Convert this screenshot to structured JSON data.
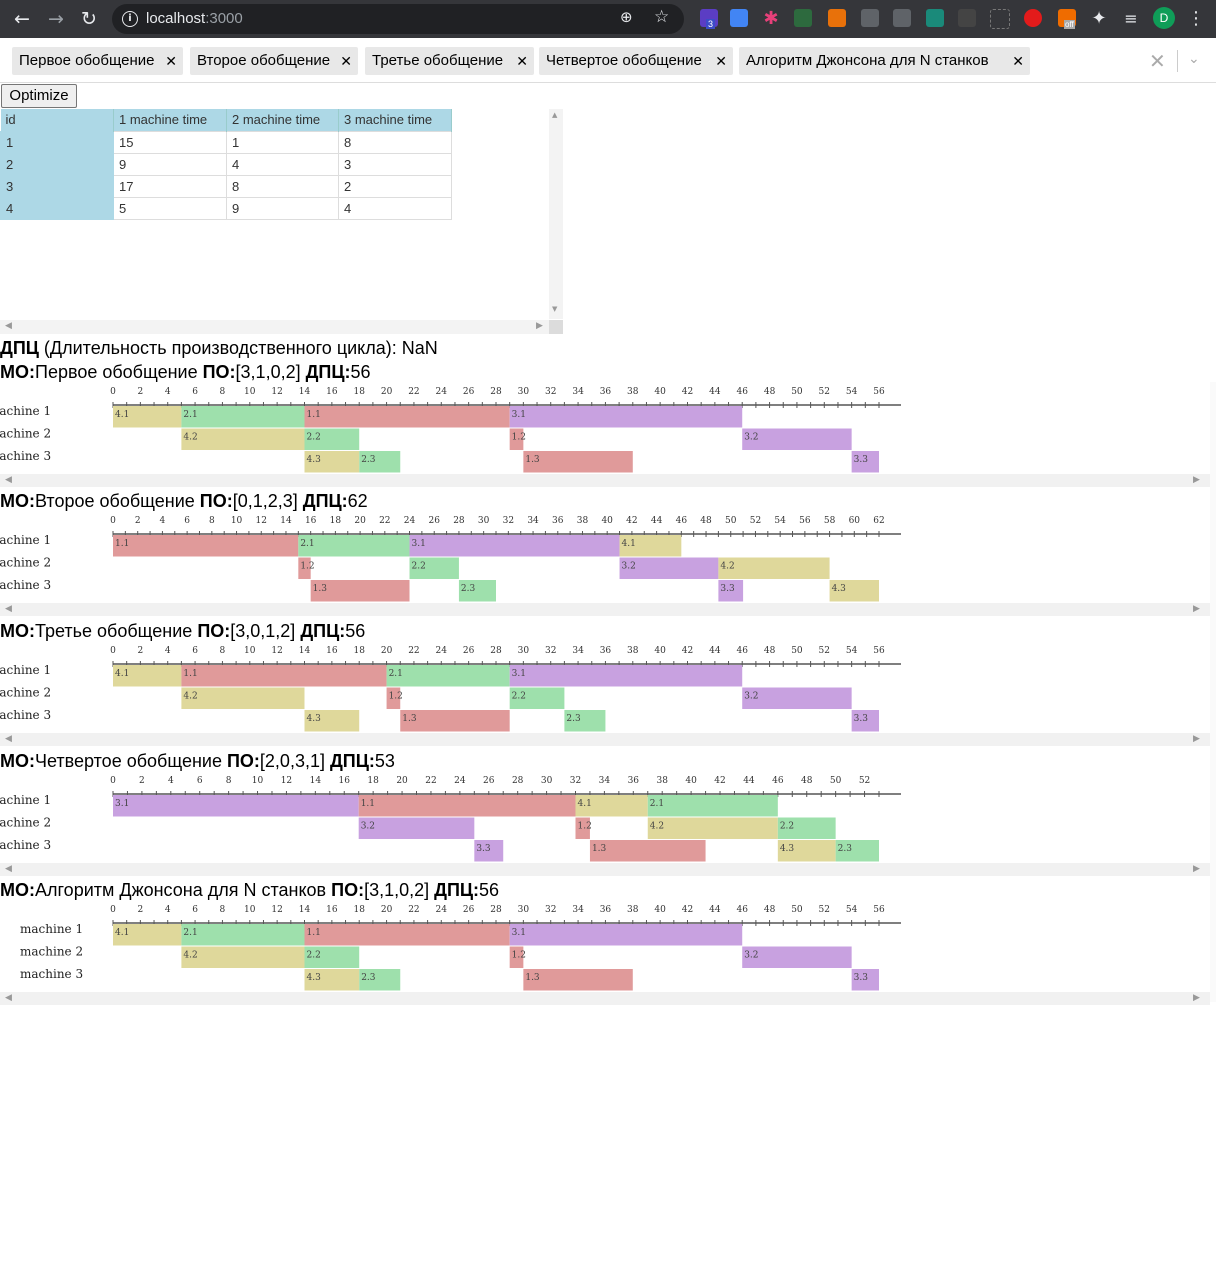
{
  "browser": {
    "host": "localhost",
    "port": ":3000",
    "avatar_letter": "D",
    "ext_badge_count": "3",
    "ext_badge_off": "off"
  },
  "tabs": [
    {
      "label": "Первое обобщение"
    },
    {
      "label": "Второе обобщение"
    },
    {
      "label": "Третье обобщение"
    },
    {
      "label": "Четвертое обобщение"
    },
    {
      "label": "Алгоритм Джонсона для N станков"
    }
  ],
  "optimize_label": "Optimize",
  "grid": {
    "columns": [
      "id",
      "1 machine time",
      "2 machine time",
      "3 machine time"
    ],
    "rows": [
      [
        "1",
        "15",
        "1",
        "8"
      ],
      [
        "2",
        "9",
        "4",
        "3"
      ],
      [
        "3",
        "17",
        "8",
        "2"
      ],
      [
        "4",
        "5",
        "9",
        "4"
      ]
    ]
  },
  "dpc_summary": {
    "label_bold": "ДПЦ",
    "label_rest": " (Длительность производственного цикла): ",
    "value": "NaN"
  },
  "machines": [
    "machine 1",
    "machine 2",
    "machine 3"
  ],
  "colors": {
    "job1": "#e09a9a",
    "job2": "#9ee0ac",
    "job3": "#c8a1e0",
    "job4": "#dfd89b"
  },
  "chart_data": [
    {
      "type": "gantt",
      "mo": "Первое обобщение",
      "po": "[3,1,0,2]",
      "dpc": "56",
      "xlim": [
        0,
        56
      ],
      "tasks": [
        {
          "label": "4.1",
          "job": 4,
          "machine": 1,
          "start": 0,
          "end": 5
        },
        {
          "label": "2.1",
          "job": 2,
          "machine": 1,
          "start": 5,
          "end": 14
        },
        {
          "label": "1.1",
          "job": 1,
          "machine": 1,
          "start": 14,
          "end": 29
        },
        {
          "label": "3.1",
          "job": 3,
          "machine": 1,
          "start": 29,
          "end": 46
        },
        {
          "label": "4.2",
          "job": 4,
          "machine": 2,
          "start": 5,
          "end": 14
        },
        {
          "label": "2.2",
          "job": 2,
          "machine": 2,
          "start": 14,
          "end": 18
        },
        {
          "label": "1.2",
          "job": 1,
          "machine": 2,
          "start": 29,
          "end": 30
        },
        {
          "label": "3.2",
          "job": 3,
          "machine": 2,
          "start": 46,
          "end": 54
        },
        {
          "label": "4.3",
          "job": 4,
          "machine": 3,
          "start": 14,
          "end": 18
        },
        {
          "label": "2.3",
          "job": 2,
          "machine": 3,
          "start": 18,
          "end": 21
        },
        {
          "label": "1.3",
          "job": 1,
          "machine": 3,
          "start": 30,
          "end": 38
        },
        {
          "label": "3.3",
          "job": 3,
          "machine": 3,
          "start": 54,
          "end": 56
        }
      ]
    },
    {
      "type": "gantt",
      "mo": "Второе обобщение",
      "po": "[0,1,2,3]",
      "dpc": "62",
      "xlim": [
        0,
        62
      ],
      "tasks": [
        {
          "label": "1.1",
          "job": 1,
          "machine": 1,
          "start": 0,
          "end": 15
        },
        {
          "label": "2.1",
          "job": 2,
          "machine": 1,
          "start": 15,
          "end": 24
        },
        {
          "label": "3.1",
          "job": 3,
          "machine": 1,
          "start": 24,
          "end": 41
        },
        {
          "label": "4.1",
          "job": 4,
          "machine": 1,
          "start": 41,
          "end": 46
        },
        {
          "label": "1.2",
          "job": 1,
          "machine": 2,
          "start": 15,
          "end": 16
        },
        {
          "label": "2.2",
          "job": 2,
          "machine": 2,
          "start": 24,
          "end": 28
        },
        {
          "label": "3.2",
          "job": 3,
          "machine": 2,
          "start": 41,
          "end": 49
        },
        {
          "label": "4.2",
          "job": 4,
          "machine": 2,
          "start": 49,
          "end": 58
        },
        {
          "label": "1.3",
          "job": 1,
          "machine": 3,
          "start": 16,
          "end": 24
        },
        {
          "label": "2.3",
          "job": 2,
          "machine": 3,
          "start": 28,
          "end": 31
        },
        {
          "label": "3.3",
          "job": 3,
          "machine": 3,
          "start": 49,
          "end": 51
        },
        {
          "label": "4.3",
          "job": 4,
          "machine": 3,
          "start": 58,
          "end": 62
        }
      ]
    },
    {
      "type": "gantt",
      "mo": "Третье обобщение",
      "po": "[3,0,1,2]",
      "dpc": "56",
      "xlim": [
        0,
        56
      ],
      "tasks": [
        {
          "label": "4.1",
          "job": 4,
          "machine": 1,
          "start": 0,
          "end": 5
        },
        {
          "label": "1.1",
          "job": 1,
          "machine": 1,
          "start": 5,
          "end": 20
        },
        {
          "label": "2.1",
          "job": 2,
          "machine": 1,
          "start": 20,
          "end": 29
        },
        {
          "label": "3.1",
          "job": 3,
          "machine": 1,
          "start": 29,
          "end": 46
        },
        {
          "label": "4.2",
          "job": 4,
          "machine": 2,
          "start": 5,
          "end": 14
        },
        {
          "label": "1.2",
          "job": 1,
          "machine": 2,
          "start": 20,
          "end": 21
        },
        {
          "label": "2.2",
          "job": 2,
          "machine": 2,
          "start": 29,
          "end": 33
        },
        {
          "label": "3.2",
          "job": 3,
          "machine": 2,
          "start": 46,
          "end": 54
        },
        {
          "label": "4.3",
          "job": 4,
          "machine": 3,
          "start": 14,
          "end": 18
        },
        {
          "label": "1.3",
          "job": 1,
          "machine": 3,
          "start": 21,
          "end": 29
        },
        {
          "label": "2.3",
          "job": 2,
          "machine": 3,
          "start": 33,
          "end": 36
        },
        {
          "label": "3.3",
          "job": 3,
          "machine": 3,
          "start": 54,
          "end": 56
        }
      ]
    },
    {
      "type": "gantt",
      "mo": "Четвертое обобщение",
      "po": "[2,0,3,1]",
      "dpc": "53",
      "xlim": [
        0,
        53
      ],
      "tasks": [
        {
          "label": "3.1",
          "job": 3,
          "machine": 1,
          "start": 0,
          "end": 17
        },
        {
          "label": "1.1",
          "job": 1,
          "machine": 1,
          "start": 17,
          "end": 32
        },
        {
          "label": "4.1",
          "job": 4,
          "machine": 1,
          "start": 32,
          "end": 37
        },
        {
          "label": "2.1",
          "job": 2,
          "machine": 1,
          "start": 37,
          "end": 46
        },
        {
          "label": "3.2",
          "job": 3,
          "machine": 2,
          "start": 17,
          "end": 25
        },
        {
          "label": "1.2",
          "job": 1,
          "machine": 2,
          "start": 32,
          "end": 33
        },
        {
          "label": "4.2",
          "job": 4,
          "machine": 2,
          "start": 37,
          "end": 46
        },
        {
          "label": "2.2",
          "job": 2,
          "machine": 2,
          "start": 46,
          "end": 50
        },
        {
          "label": "3.3",
          "job": 3,
          "machine": 3,
          "start": 25,
          "end": 27
        },
        {
          "label": "1.3",
          "job": 1,
          "machine": 3,
          "start": 33,
          "end": 41
        },
        {
          "label": "4.3",
          "job": 4,
          "machine": 3,
          "start": 46,
          "end": 50
        },
        {
          "label": "2.3",
          "job": 2,
          "machine": 3,
          "start": 50,
          "end": 53
        }
      ]
    },
    {
      "type": "gantt",
      "mo": "Алгоритм Джонсона для N станков",
      "po": "[3,1,0,2]",
      "dpc": "56",
      "xlim": [
        0,
        56
      ],
      "tasks": [
        {
          "label": "4.1",
          "job": 4,
          "machine": 1,
          "start": 0,
          "end": 5
        },
        {
          "label": "2.1",
          "job": 2,
          "machine": 1,
          "start": 5,
          "end": 14
        },
        {
          "label": "1.1",
          "job": 1,
          "machine": 1,
          "start": 14,
          "end": 29
        },
        {
          "label": "3.1",
          "job": 3,
          "machine": 1,
          "start": 29,
          "end": 46
        },
        {
          "label": "4.2",
          "job": 4,
          "machine": 2,
          "start": 5,
          "end": 14
        },
        {
          "label": "2.2",
          "job": 2,
          "machine": 2,
          "start": 14,
          "end": 18
        },
        {
          "label": "1.2",
          "job": 1,
          "machine": 2,
          "start": 29,
          "end": 30
        },
        {
          "label": "3.2",
          "job": 3,
          "machine": 2,
          "start": 46,
          "end": 54
        },
        {
          "label": "4.3",
          "job": 4,
          "machine": 3,
          "start": 14,
          "end": 18
        },
        {
          "label": "2.3",
          "job": 2,
          "machine": 3,
          "start": 18,
          "end": 21
        },
        {
          "label": "1.3",
          "job": 1,
          "machine": 3,
          "start": 30,
          "end": 38
        },
        {
          "label": "3.3",
          "job": 3,
          "machine": 3,
          "start": 54,
          "end": 56
        }
      ]
    }
  ]
}
